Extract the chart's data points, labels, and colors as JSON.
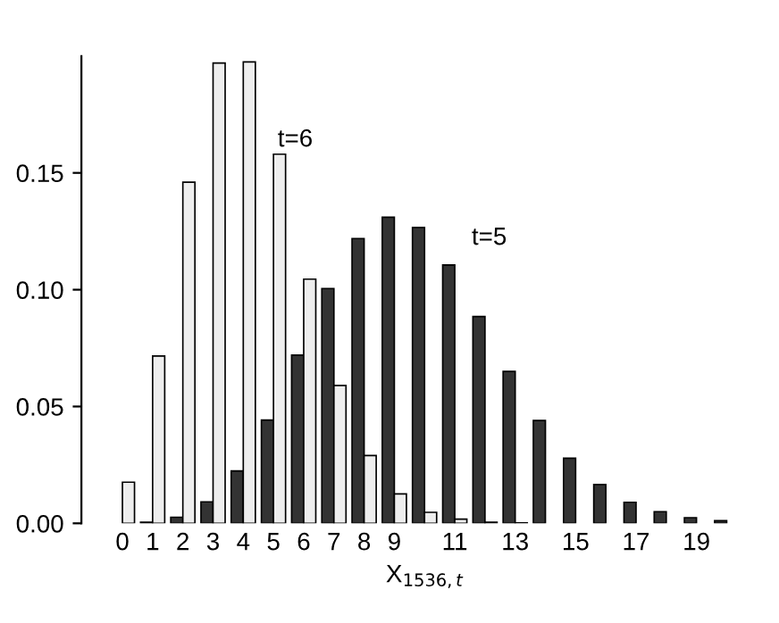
{
  "chart_data": {
    "type": "bar",
    "xlabel": "X$_{1536,t}$",
    "categories": [
      "0",
      "1",
      "2",
      "3",
      "4",
      "5",
      "6",
      "7",
      "8",
      "9",
      null,
      "11",
      null,
      "13",
      null,
      "15",
      null,
      "17",
      null,
      "19",
      null
    ],
    "series": [
      {
        "color": "#333333",
        "values": [
          0,
          0.0005,
          0.0026,
          0.0092,
          0.0224,
          0.0442,
          0.072,
          0.1005,
          0.1219,
          0.131,
          0.1266,
          0.1106,
          0.0885,
          0.065,
          0.044,
          0.0279,
          0.0166,
          0.009,
          0.005,
          0.0024,
          0.0011
        ]
      },
      {
        "color": "#eeeeee",
        "values": [
          0.0176,
          0.0716,
          0.146,
          0.197,
          0.1975,
          0.158,
          0.1045,
          0.059,
          0.029,
          0.0126,
          0.0047,
          0.0018,
          0.0005,
          0.0002,
          0,
          0,
          0,
          0,
          0,
          0,
          0
        ]
      }
    ],
    "ylim": [
      0,
      0.2
    ],
    "yticks": [
      {
        "value": 0,
        "label": "0.00"
      },
      {
        "value": 0.05,
        "label": "0.05"
      },
      {
        "value": 0.1,
        "label": "0.10"
      },
      {
        "value": 0.15,
        "label": "0.15"
      }
    ],
    "annotations": [
      "t=6",
      "t=5"
    ],
    "grid": false,
    "legend": false
  }
}
